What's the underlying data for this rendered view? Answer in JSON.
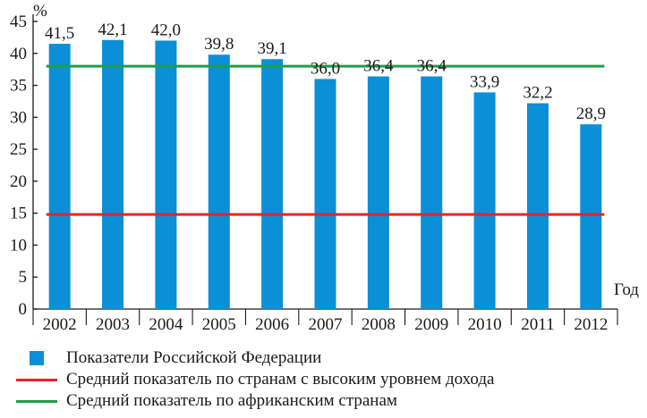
{
  "chart_data": {
    "type": "bar",
    "ylabel": "%",
    "xlabel": "Год",
    "ylim": [
      0,
      45
    ],
    "yticks": [
      "0",
      "5",
      "10",
      "15",
      "20",
      "25",
      "30",
      "35",
      "40",
      "45"
    ],
    "categories": [
      "2002",
      "2003",
      "2004",
      "2005",
      "2006",
      "2007",
      "2008",
      "2009",
      "2010",
      "2011",
      "2012"
    ],
    "series": [
      {
        "name": "Показатели Российской Федерации",
        "values": [
          41.5,
          42.1,
          42.0,
          39.8,
          39.1,
          36.0,
          36.4,
          36.4,
          33.9,
          32.2,
          28.9
        ],
        "labels": [
          "41,5",
          "42,1",
          "42,0",
          "39,8",
          "39,1",
          "36,0",
          "36,4",
          "36,4",
          "33,9",
          "32,2",
          "28,9"
        ],
        "color": "#0b8fd6"
      }
    ],
    "reference_lines": [
      {
        "name": "Средний показатель по странам с высоким уровнем дохода",
        "value": 14.8,
        "color": "#e0262b"
      },
      {
        "name": "Средний показатель по африканским странам",
        "value": 38.0,
        "color": "#1e9e4a"
      }
    ],
    "grid": false,
    "legend_position": "bottom"
  },
  "legend": {
    "items": [
      {
        "label": "Показатели Российской Федерации",
        "color": "#0b8fd6",
        "kind": "bar"
      },
      {
        "label": "Средний показатель по странам с высоким уровнем дохода",
        "color": "#e0262b",
        "kind": "line"
      },
      {
        "label": "Средний показатель по африканским странам",
        "color": "#1e9e4a",
        "kind": "line"
      }
    ]
  }
}
